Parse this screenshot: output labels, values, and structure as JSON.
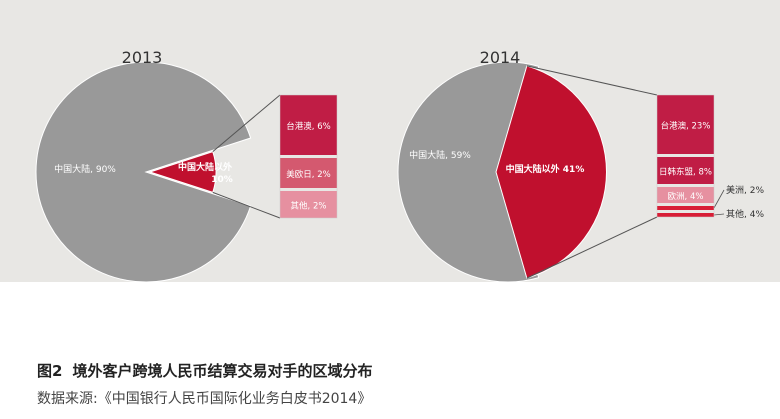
{
  "figure": {
    "number": "图2",
    "title": "境外客户跨境人民币结算交易对手的区域分布",
    "source": "数据来源:《中国银行人民币国际化业务白皮书2014》"
  },
  "colors": {
    "background": "#e8e7e4",
    "gray_slice": "#999999",
    "red_slice": "#c0102e",
    "breakdown": [
      "#c01d45",
      "#d4596f",
      "#e690a0",
      "#d81e36",
      "#d81e36"
    ]
  },
  "chart_data": [
    {
      "type": "pie",
      "title": "2013",
      "slices": [
        {
          "label": "中国大陆,90%",
          "value": 90
        },
        {
          "label": "中国大陆以外 10%",
          "value": 10
        }
      ],
      "breakdown_of": "中国大陆以外",
      "breakdown": [
        {
          "label": "台港澳,6%",
          "value": 6
        },
        {
          "label": "美欧日,2%",
          "value": 2
        },
        {
          "label": "其他,2%",
          "value": 2
        }
      ]
    },
    {
      "type": "pie",
      "title": "2014",
      "slices": [
        {
          "label": "中国大陆,59%",
          "value": 59
        },
        {
          "label": "中国大陆以外 41%",
          "value": 41
        }
      ],
      "breakdown_of": "中国大陆以外",
      "breakdown": [
        {
          "label": "台港澳,23%",
          "value": 23
        },
        {
          "label": "日韩东盟,8%",
          "value": 8
        },
        {
          "label": "欧洲,4%",
          "value": 4
        },
        {
          "label": "美洲,2%",
          "value": 2
        },
        {
          "label": "其他,4%",
          "value": 4
        }
      ]
    }
  ]
}
